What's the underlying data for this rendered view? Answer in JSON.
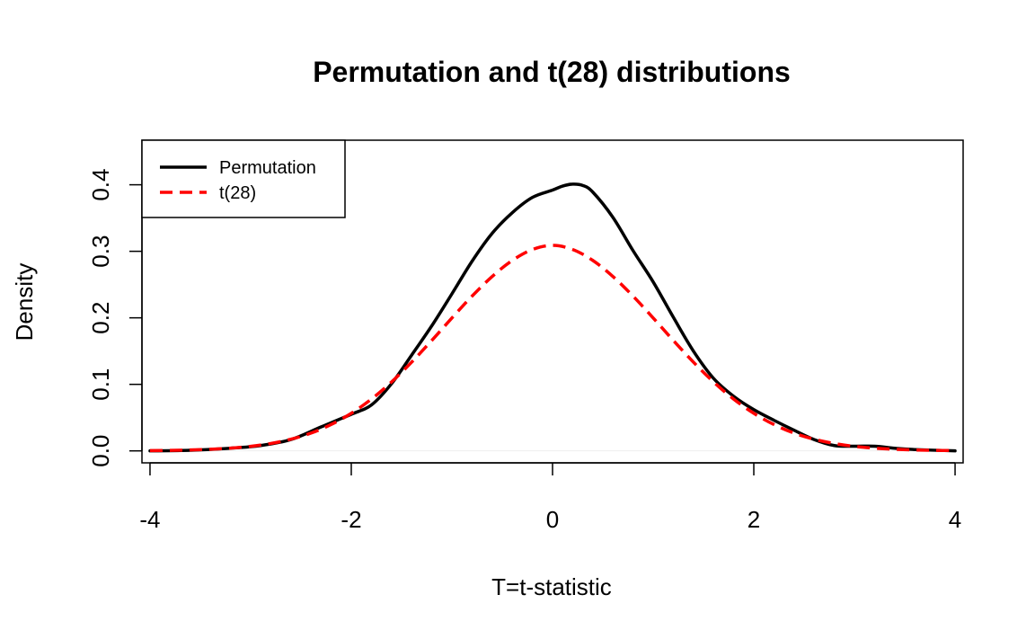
{
  "chart_data": {
    "type": "line",
    "title": "Permutation and t(28) distributions",
    "xlabel": "T=t-statistic",
    "ylabel": "Density",
    "xlim": [
      -4.08,
      4.08
    ],
    "ylim": [
      -0.018,
      0.467
    ],
    "x_ticks": [
      -4,
      -2,
      0,
      2,
      4
    ],
    "x_tick_labels": [
      "-4",
      "-2",
      "0",
      "2",
      "4"
    ],
    "y_ticks": [
      0.0,
      0.1,
      0.2,
      0.3,
      0.4
    ],
    "y_tick_labels": [
      "0.0",
      "0.1",
      "0.2",
      "0.3",
      "0.4"
    ],
    "grid": false,
    "legend": {
      "position": "top-left",
      "entries": [
        "Permutation",
        "t(28)"
      ]
    },
    "series": [
      {
        "name": "Permutation",
        "color": "#000000",
        "dash": "solid",
        "x": [
          -4.0,
          -3.6,
          -3.2,
          -2.9,
          -2.6,
          -2.3,
          -2.0,
          -1.8,
          -1.6,
          -1.4,
          -1.2,
          -1.0,
          -0.8,
          -0.6,
          -0.4,
          -0.2,
          0.0,
          0.1,
          0.2,
          0.3,
          0.4,
          0.6,
          0.8,
          1.0,
          1.2,
          1.4,
          1.6,
          1.8,
          2.0,
          2.2,
          2.4,
          2.6,
          2.8,
          3.0,
          3.2,
          3.4,
          3.6,
          4.0
        ],
        "y": [
          0.0,
          0.001,
          0.004,
          0.008,
          0.017,
          0.036,
          0.055,
          0.069,
          0.101,
          0.144,
          0.188,
          0.236,
          0.285,
          0.327,
          0.358,
          0.381,
          0.392,
          0.398,
          0.401,
          0.399,
          0.389,
          0.351,
          0.301,
          0.254,
          0.201,
          0.15,
          0.109,
          0.082,
          0.062,
          0.046,
          0.031,
          0.017,
          0.008,
          0.007,
          0.007,
          0.004,
          0.002,
          0.0
        ]
      },
      {
        "name": "t(28)",
        "color": "#ff0000",
        "dash": "dashed",
        "x": [
          -4.0,
          -3.8,
          -3.6,
          -3.4,
          -3.2,
          -3.0,
          -2.8,
          -2.6,
          -2.4,
          -2.2,
          -2.0,
          -1.8,
          -1.6,
          -1.4,
          -1.2,
          -1.0,
          -0.8,
          -0.6,
          -0.4,
          -0.2,
          0.0,
          0.2,
          0.4,
          0.6,
          0.8,
          1.0,
          1.2,
          1.4,
          1.6,
          1.8,
          2.0,
          2.2,
          2.4,
          2.6,
          2.8,
          3.0,
          3.2,
          3.4,
          3.6,
          3.8,
          4.0
        ],
        "y": [
          0.0004,
          0.0008,
          0.0014,
          0.0024,
          0.0041,
          0.0068,
          0.0111,
          0.0175,
          0.0267,
          0.0396,
          0.0565,
          0.0778,
          0.1036,
          0.1334,
          0.166,
          0.1998,
          0.2326,
          0.2621,
          0.2863,
          0.3027,
          0.3089,
          0.3027,
          0.2863,
          0.2621,
          0.2326,
          0.1998,
          0.166,
          0.1334,
          0.1036,
          0.0778,
          0.0565,
          0.0396,
          0.0267,
          0.0175,
          0.0111,
          0.0068,
          0.0041,
          0.0024,
          0.0014,
          0.0008,
          0.0004
        ]
      }
    ]
  }
}
